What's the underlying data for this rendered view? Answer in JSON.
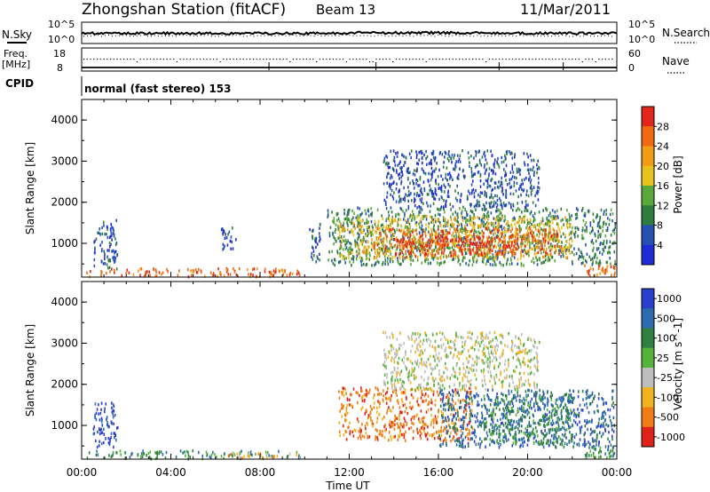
{
  "header": {
    "station": "Zhongshan Station (fitACF)",
    "beam": "Beam 13",
    "date": "11/Mar/2011"
  },
  "noise_panel": {
    "left_label": "N.Sky",
    "right_label": "N.Search",
    "left_ticks": [
      "10^5",
      "10^0"
    ],
    "right_ticks": [
      "10^5",
      "10^0"
    ]
  },
  "freq_panel": {
    "left_label_line1": "Freq.",
    "left_label_line2": "[MHz]",
    "right_label": "Nave",
    "left_ticks": [
      "18",
      "8"
    ],
    "right_ticks": [
      "60",
      "0"
    ]
  },
  "cpid": {
    "label": "CPID",
    "value": "normal (fast stereo) 153"
  },
  "colors": {
    "power": [
      "#1f2bd6",
      "#2450b4",
      "#2e7d3e",
      "#5aa83c",
      "#e7c21d",
      "#f39a16",
      "#ef6a12",
      "#e3261b"
    ],
    "velocity": [
      "#2a3fcc",
      "#2b6bb0",
      "#2f7f3f",
      "#55b33a",
      "#bdbdbd",
      "#f1b21b",
      "#ef7c14",
      "#e0231a"
    ]
  },
  "chart_data": [
    {
      "type": "heatmap",
      "name": "power",
      "ylabel": "Slant Range [km]",
      "ylim": [
        180,
        4500
      ],
      "y_ticks": [
        "1000",
        "2000",
        "3000",
        "4000"
      ],
      "x_range_hours": [
        0,
        24
      ],
      "colorbar": {
        "label": "Power [dB]",
        "range": [
          0,
          32
        ],
        "tick_labels": [
          "4",
          "8",
          "12",
          "16",
          "20",
          "24",
          "28"
        ]
      },
      "regions": [
        {
          "t0": 0.2,
          "t1": 9.8,
          "r0": 220,
          "r1": 420,
          "level": 6
        },
        {
          "t0": 0.5,
          "t1": 1.6,
          "r0": 400,
          "r1": 1600,
          "level": 1
        },
        {
          "t0": 6.2,
          "t1": 6.9,
          "r0": 850,
          "r1": 1450,
          "level": 1
        },
        {
          "t0": 10.2,
          "t1": 10.7,
          "r0": 500,
          "r1": 1500,
          "level": 1
        },
        {
          "t0": 11.0,
          "t1": 23.9,
          "r0": 500,
          "r1": 1900,
          "level": 2
        },
        {
          "t0": 11.5,
          "t1": 22.0,
          "r0": 650,
          "r1": 1700,
          "level": 4
        },
        {
          "t0": 13.0,
          "t1": 21.5,
          "r0": 750,
          "r1": 1400,
          "level": 6
        },
        {
          "t0": 14.0,
          "t1": 19.5,
          "r0": 700,
          "r1": 1200,
          "level": 7
        },
        {
          "t0": 13.5,
          "t1": 20.5,
          "r0": 1900,
          "r1": 3300,
          "level": 1
        },
        {
          "t0": 22.5,
          "t1": 23.9,
          "r0": 250,
          "r1": 500,
          "level": 6
        }
      ]
    },
    {
      "type": "heatmap",
      "name": "velocity",
      "xlabel": "Time UT",
      "ylabel": "Slant Range [km]",
      "ylim": [
        180,
        4500
      ],
      "y_ticks": [
        "1000",
        "2000",
        "3000",
        "4000"
      ],
      "x_ticks": [
        "00:00",
        "04:00",
        "08:00",
        "12:00",
        "16:00",
        "20:00",
        "00:00"
      ],
      "x_range_hours": [
        0,
        24
      ],
      "colorbar": {
        "label": "Velocity [m s^-1]",
        "tick_labels": [
          "1000",
          "500",
          "100",
          "25",
          "-25",
          "-100",
          "-500",
          "-1000"
        ]
      },
      "regions": [
        {
          "t0": 0.2,
          "t1": 9.8,
          "r0": 220,
          "r1": 420,
          "level": 2
        },
        {
          "t0": 6.5,
          "t1": 9.8,
          "r0": 220,
          "r1": 380,
          "level": 5
        },
        {
          "t0": 0.5,
          "t1": 1.6,
          "r0": 500,
          "r1": 1600,
          "level": 0
        },
        {
          "t0": 11.5,
          "t1": 17.5,
          "r0": 650,
          "r1": 1950,
          "level": 6
        },
        {
          "t0": 16.0,
          "t1": 23.9,
          "r0": 500,
          "r1": 1900,
          "level": 1
        },
        {
          "t0": 18.0,
          "t1": 22.0,
          "r0": 600,
          "r1": 1800,
          "level": 2
        },
        {
          "t0": 13.5,
          "t1": 20.5,
          "r0": 1900,
          "r1": 3300,
          "level": 4
        },
        {
          "t0": 22.5,
          "t1": 23.9,
          "r0": 250,
          "r1": 500,
          "level": 2
        }
      ]
    }
  ]
}
